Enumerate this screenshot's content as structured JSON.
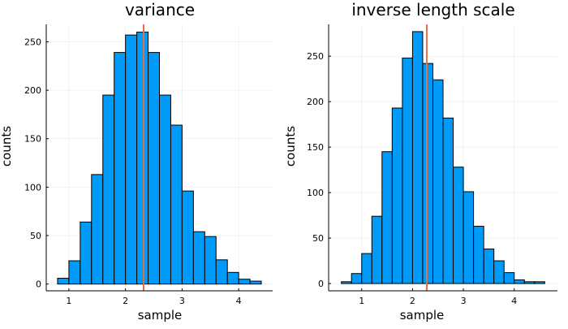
{
  "chart_data": [
    {
      "type": "bar",
      "title": "variance",
      "xlabel": "sample",
      "ylabel": "counts",
      "bin_edges": [
        0.8,
        1.0,
        1.2,
        1.4,
        1.6,
        1.8,
        2.0,
        2.2,
        2.4,
        2.6,
        2.8,
        3.0,
        3.2,
        3.4,
        3.6,
        3.8,
        4.0,
        4.2,
        4.4
      ],
      "values": [
        6,
        24,
        64,
        113,
        195,
        239,
        257,
        260,
        239,
        195,
        164,
        96,
        54,
        49,
        25,
        12,
        5,
        3
      ],
      "reference_line_x": 2.32,
      "xlim": [
        0.6,
        4.6
      ],
      "ylim": [
        -7,
        268
      ],
      "xticks": [
        1,
        2,
        3,
        4
      ],
      "yticks": [
        0,
        50,
        100,
        150,
        200,
        250
      ],
      "grid": true,
      "bar_color": "#009af9",
      "line_color": "#e26f46"
    },
    {
      "type": "bar",
      "title": "inverse length scale",
      "xlabel": "sample",
      "ylabel": "counts",
      "bin_edges": [
        0.6,
        0.8,
        1.0,
        1.2,
        1.4,
        1.6,
        1.8,
        2.0,
        2.2,
        2.4,
        2.6,
        2.8,
        3.0,
        3.2,
        3.4,
        3.6,
        3.8,
        4.0,
        4.2,
        4.4,
        4.6
      ],
      "values": [
        2,
        11,
        33,
        74,
        145,
        193,
        248,
        277,
        242,
        224,
        182,
        128,
        101,
        63,
        38,
        25,
        12,
        4,
        2,
        2
      ],
      "reference_line_x": 2.28,
      "xlim": [
        0.35,
        4.85
      ],
      "ylim": [
        -8,
        285
      ],
      "xticks": [
        1,
        2,
        3,
        4
      ],
      "yticks": [
        0,
        50,
        100,
        150,
        200,
        250
      ],
      "grid": true,
      "bar_color": "#009af9",
      "line_color": "#e26f46"
    }
  ]
}
